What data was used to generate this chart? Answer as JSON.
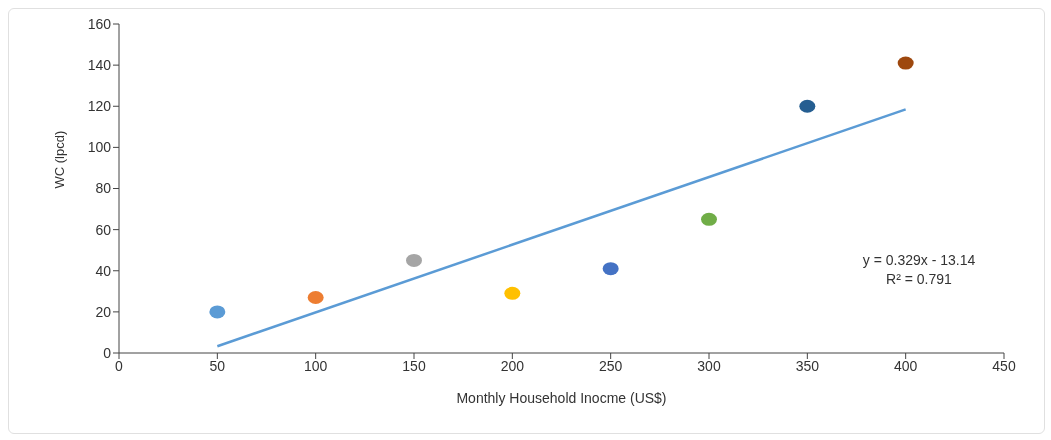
{
  "chart_data": {
    "type": "scatter",
    "xlabel": "Monthly Household Inocme (US$)",
    "ylabel": "WC (lpcd)",
    "series": [
      {
        "x": [
          50,
          100,
          150,
          200,
          250,
          300,
          350,
          400
        ],
        "marker": "circle",
        "values": [
          20,
          27,
          45,
          29,
          41,
          65,
          120,
          141
        ],
        "colors": [
          "#5b9bd5",
          "#ed7d31",
          "#a5a5a5",
          "#ffc000",
          "#4472c4",
          "#70ad47",
          "#255e91",
          "#9e480e"
        ]
      },
      {
        "type": "line",
        "x": [
          50,
          400
        ],
        "values": [
          3.3,
          118.5
        ],
        "color": "#5b9bd5"
      }
    ],
    "xlim": [
      0,
      450
    ],
    "xticks": [
      0,
      50,
      100,
      150,
      200,
      250,
      300,
      350,
      400,
      450
    ],
    "ylim": [
      0,
      160
    ],
    "yticks": [
      0,
      20,
      40,
      60,
      80,
      100,
      120,
      140,
      160
    ],
    "annotations": [
      "y = 0.329x - 13.14",
      "R² = 0.791"
    ],
    "grid": false,
    "legend": false
  }
}
